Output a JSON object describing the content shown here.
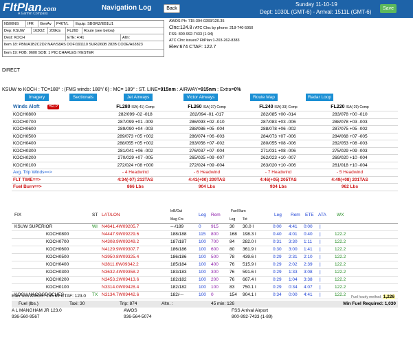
{
  "header": {
    "logo": "FltPlan",
    "logo_suffix": ".com",
    "logo_sub": "A Garmin Company",
    "title": "Navigation Log",
    "back_label": "Back",
    "save_label": "Save",
    "date": "Sunday 11-10-19",
    "departure": "Dept: 1030L (GMT-6) - Arrival: 1511L (GMT-6)"
  },
  "flight_plan": {
    "row1": [
      "N500NG",
      "IFR",
      "GenAv",
      "P46T/L",
      "Equip: SBGRZ/EB1U1"
    ],
    "row2": [
      "Dep: KSUW",
      "163OZ",
      "209kts",
      "FL260",
      "Route (see below)"
    ],
    "row3": [
      "Dest: KOCH",
      "ETE: 4:41",
      "Altn:"
    ],
    "item18": "Item 18: PBN/A1B2C2D2 NAV/S8AS DOF/191110 SUR/260B 282B CODE/A63823",
    "item19": "Item 19:   FOB: 0600  SOB: 1  PIC:CHARLES IVESTER"
  },
  "atc": {
    "awos": "AWOS Ph: 715-394-0283/120.35",
    "clnc": "Clnc:124.8",
    "clnc_note": " / ATC Clnc by phone: 218-740-5950",
    "fss": "FSS: 800-992-7433 (1-94)",
    "issues": "ATC Clnc issues? FltPlan:1-203-262-8383",
    "elev": "Elev:674   CTAF: 122.7"
  },
  "direct": "DIRECT",
  "route_summary": {
    "prefix": "KSUW to KOCH : TC=188° : (FMS winds: 188°/ 6) : MC= 189° : ST. LINE=",
    "stline": "915nm",
    "mid": " : AIRWAY=",
    "airway": "915nm",
    "suffix": " : Extra=",
    "extra": "0%"
  },
  "map_buttons": [
    "Imagery",
    "Sectionals",
    "Jet Airways",
    "Victor Airways",
    "Route Map",
    "Radar Loop"
  ],
  "winds": {
    "title": "Winds Aloft",
    "help": "HELP",
    "altitudes": [
      {
        "level": "FL280",
        "isa": "ISA(-41) Comp"
      },
      {
        "level": "FL260",
        "isa": "ISA(-37) Comp"
      },
      {
        "level": "FL240",
        "isa": "ISA(-33) Comp"
      },
      {
        "level": "FL220",
        "isa": "ISA(-29) Comp"
      }
    ],
    "rows": [
      {
        "time": "KOCH0800",
        "v": [
          "282/099  -02  -018",
          "282/094  -01  -017",
          "282/085  +00  -014",
          "283/078  +00  -010"
        ]
      },
      {
        "time": "KOCH0700",
        "v": [
          "287/099  +01  -009",
          "286/093  +02  -010",
          "287/083  +03  -006",
          "288/078  +03  -003"
        ]
      },
      {
        "time": "KOCH0600",
        "v": [
          "289/090  +04  -003",
          "288/086  +05  -004",
          "288/078  +06  -002",
          "287/075  +05  -002"
        ]
      },
      {
        "time": "KOCH0500",
        "v": [
          "289/073  +05  +002",
          "286/074  +06  -003",
          "284/073  +07  -006",
          "284/068  +07  -005"
        ]
      },
      {
        "time": "KOCH0400",
        "v": [
          "288/055  +05  +002",
          "283/056  +07  -002",
          "280/055  +08  -006",
          "282/053  +08  -003"
        ]
      },
      {
        "time": "KOCH0300",
        "v": [
          "281/041  +06  -002",
          "276/037  +07  -004",
          "271/031  +08  -006",
          "275/029  +09  -003"
        ]
      },
      {
        "time": "KOCH0200",
        "v": [
          "270/029  +07  -005",
          "265/025  +09  -007",
          "262/023  +10  -007",
          "269/020  +10  -004"
        ]
      },
      {
        "time": "KOCH0100",
        "v": [
          "272/024  +08  +000",
          "272/024  +09  -004",
          "263/020  +10  -006",
          "261/018  +10  -004"
        ]
      }
    ],
    "avg_label": "Avg. Trip Winds==>",
    "avg": [
      "- 4 Headwind",
      "- 6 Headwind",
      "- 7 Headwind",
      "- 5 Headwind"
    ],
    "time_label": "FLT TIME==>",
    "times": [
      "4:34(-07)   213TAS",
      "4:41(+00)   209TAS",
      "4:46(+05)   205TAS",
      "4:49(+08)   201TAS"
    ],
    "burn_label": "Fuel Burn==>",
    "burns": [
      "866 Lbs",
      "904 Lbs",
      "934 Lbs",
      "962 Lbs"
    ]
  },
  "log": {
    "headers": {
      "fix": "FIX",
      "st": "ST",
      "latlon": "LAT/LON",
      "inbout": "InB/Out",
      "magcrs": "Mag Crs",
      "leg": "Leg",
      "rem": "Rem",
      "fuelburn": "Fuel Burn",
      "fleg": "Leg",
      "ftot": "Tot",
      "tleg": "Leg",
      "trem": "Rem",
      "ete": "ETE",
      "ata": "ATA",
      "wx": "WX"
    },
    "rows": [
      {
        "fix": "KSUW SUPERIOR",
        "st": "WI",
        "latlon": "N4641.4W09205.7",
        "crs": "---/189",
        "leg": "0",
        "rem": "915",
        "fleg": "30",
        "ftot": "30.0 l",
        "tleg": "0:00",
        "trem": "4:41",
        "ete": "0:00",
        "ata": "|",
        "wx": ""
      },
      {
        "fix": "KOCH0800",
        "st": "",
        "latlon": "N4447.9W09229.6",
        "crs": "188/188",
        "leg": "115",
        "rem": "800",
        "fleg": "168",
        "ftot": "198.3 l",
        "tleg": "0:40",
        "trem": "4:01",
        "ete": "0:40",
        "ata": "|",
        "wx": "122.2"
      },
      {
        "fix": "KOCH0700",
        "st": "",
        "latlon": "N4308.9W09249.2",
        "crs": "187/187",
        "leg": "100",
        "rem": "700",
        "fleg": "84",
        "ftot": "282.0 l",
        "tleg": "0:31",
        "trem": "3:30",
        "ete": "1:11",
        "ata": "|",
        "wx": "122.2"
      },
      {
        "fix": "KOCH0600",
        "st": "",
        "latlon": "N4129.9W09307.7",
        "crs": "186/186",
        "leg": "100",
        "rem": "600",
        "fleg": "80",
        "ftot": "361.9 l",
        "tleg": "0:30",
        "trem": "3:00",
        "ete": "1:41",
        "ata": "|",
        "wx": "122.2"
      },
      {
        "fix": "KOCH0500",
        "st": "",
        "latlon": "N3950.8W09325.4",
        "crs": "186/186",
        "leg": "100",
        "rem": "500",
        "fleg": "78",
        "ftot": "439.6 l",
        "tleg": "0:29",
        "trem": "2:31",
        "ete": "2:10",
        "ata": "|",
        "wx": "122.2"
      },
      {
        "fix": "KOCH0400",
        "st": "",
        "latlon": "N3811.6W09342.2",
        "crs": "185/184",
        "leg": "100",
        "rem": "400",
        "fleg": "76",
        "ftot": "515.9 l",
        "tleg": "0:29",
        "trem": "2:02",
        "ete": "2:39",
        "ata": "|",
        "wx": "122.2"
      },
      {
        "fix": "KOCH0300",
        "st": "",
        "latlon": "N3632.4W09358.2",
        "crs": "183/183",
        "leg": "100",
        "rem": "300",
        "fleg": "76",
        "ftot": "591.6 l",
        "tleg": "0:29",
        "trem": "1:33",
        "ete": "3:08",
        "ata": "|",
        "wx": "122.2"
      },
      {
        "fix": "KOCH0200",
        "st": "",
        "latlon": "N3453.2W09413.6",
        "crs": "182/182",
        "leg": "100",
        "rem": "200",
        "fleg": "76",
        "ftot": "667.4 l",
        "tleg": "0:29",
        "trem": "1:04",
        "ete": "3:38",
        "ata": "|",
        "wx": "122.2"
      },
      {
        "fix": "KOCH0100",
        "st": "",
        "latlon": "N3314.0W09428.4",
        "crs": "182/182",
        "leg": "100",
        "rem": "100",
        "fleg": "83",
        "ftot": "750.1 l",
        "tleg": "0:29",
        "trem": "0:34",
        "ete": "4:07",
        "ata": "|",
        "wx": "122.2"
      },
      {
        "fix": "KOCH NACOGDOCHES",
        "st": "TX",
        "latlon": "N3134.7W09442.6",
        "crs": "182/---",
        "leg": "100",
        "rem": "0",
        "fleg": "154",
        "ftot": "904.1 l",
        "tleg": "0:34",
        "trem": "0:00",
        "ete": "4:41",
        "ata": "|",
        "wx": "122.2"
      }
    ]
  },
  "footer": {
    "elev": "Elev:355   AWOS: 135.62   CTAF: 123.0",
    "fuel_rate_label": "Fuel hourly method: ",
    "fuel_rate": "1,226",
    "fuel": "Fuel (lbs.)",
    "taxi": "Taxi: 30",
    "trip": "Trip: 874",
    "altn": "Altn. :",
    "reserve": "45 min: 126",
    "min_fuel": "Min Fuel Required: 1,030",
    "freq_name1": "A L MANGHAM JR 123.0",
    "freq_phone1": "936-560-9567",
    "freq_name2": "AWOS",
    "freq_phone2": "936-564-5074",
    "freq_name3": "FSS Arrival Airport",
    "freq_phone3": "800-992-7433 (1-89)"
  },
  "colors": {
    "header_blue": "#1e63a8",
    "button_blue": "#1a8fd4",
    "save_green": "#5cb85c",
    "alert_red": "#cc1010"
  }
}
